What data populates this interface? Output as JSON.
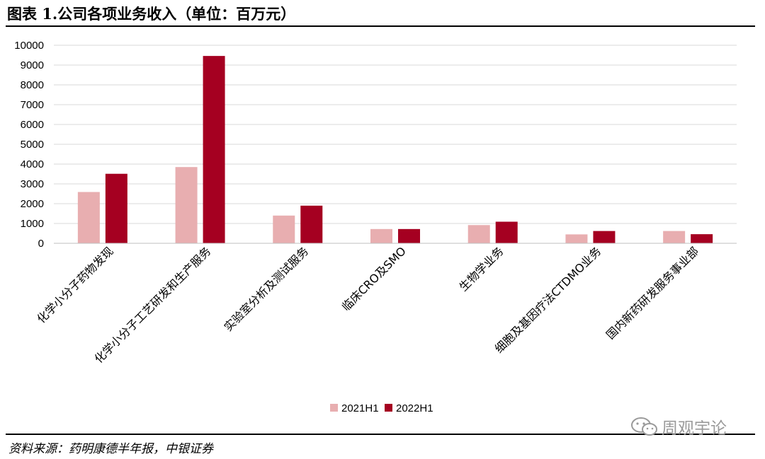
{
  "figure": {
    "title": "图表 1.公司各项业务收入（单位：百万元）",
    "source": "资料来源：药明康德半年报，中银证券",
    "watermark": "周观宇论"
  },
  "colors": {
    "series_2021H1": "#e8aeb0",
    "series_2022H1": "#a50021",
    "grid": "#d9d9d9",
    "watermark": "#9a9a9a"
  },
  "chart_data": {
    "type": "bar",
    "title": "",
    "xlabel": "",
    "ylabel": "",
    "ylim": [
      0,
      10000
    ],
    "yticks": [
      0,
      1000,
      2000,
      3000,
      4000,
      5000,
      6000,
      7000,
      8000,
      9000,
      10000
    ],
    "grid": true,
    "legend_position": "bottom",
    "categories": [
      "化学小分子药物发现",
      "化学小分子工艺研发和生产服务",
      "实验室分析及测试服务",
      "临床CRO及SMO",
      "生物学业务",
      "细胞及基因疗法CTDMO业务",
      "国内新药研发服务事业部"
    ],
    "series": [
      {
        "name": "2021H1",
        "color": "#e8aeb0",
        "values": [
          2590,
          3850,
          1400,
          720,
          920,
          450,
          620
        ]
      },
      {
        "name": "2022H1",
        "color": "#a50021",
        "values": [
          3510,
          9460,
          1900,
          720,
          1090,
          620,
          460
        ]
      }
    ]
  }
}
